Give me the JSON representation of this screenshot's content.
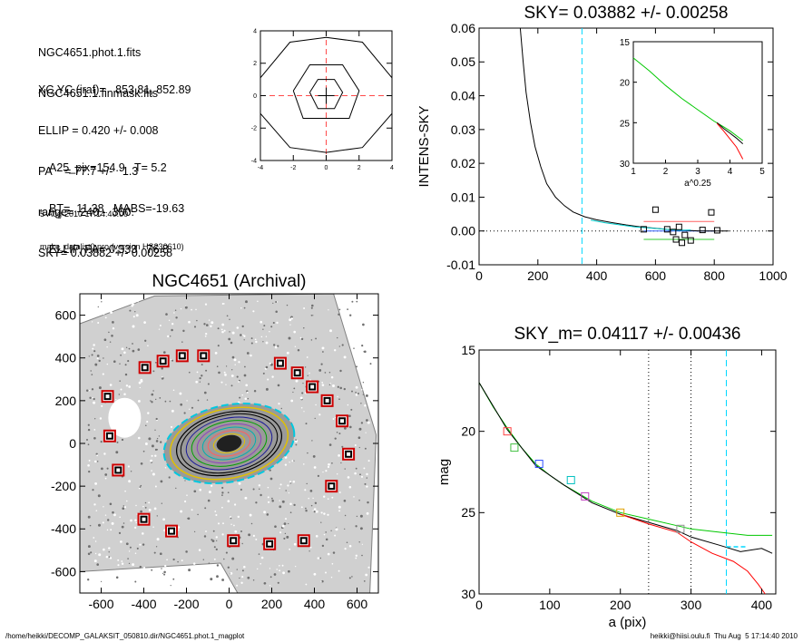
{
  "info": {
    "lines_a": [
      "NGC4651.phot.1.fits",
      "NGC4651.1.finmask.fits"
    ],
    "lines_b": [
      "XC,YC (iraf)=   853.81, 852.89",
      "ELLIP = 0.420 +/- 0.008",
      "PA    = 77.7 +/-   1.3",
      "range=  240.-  300.",
      "SKY= 0.03882 +/- 0.00258"
    ],
    "lines_c": [
      "A25_pix=154.9   T= 5.2",
      "BT=  11.38   MABS=-19.63",
      "ELLIP, PA= 0.333   76.8"
    ],
    "lines_d": [
      "5-Aug-2010 17:14:40.00",
      "make_datalist0.pro (version HS230610)"
    ]
  },
  "footer": {
    "left": "/home/heikki/DECOMP_GALAKSIT_050810.dir/NGC4651.phot.1_magplot",
    "right": "heikki@hiisi.oulu.fi  Thu Aug  5 17:14:40 2010"
  },
  "chart_data": [
    {
      "id": "contour",
      "type": "contour",
      "title": "",
      "xlim": [
        -4,
        4
      ],
      "ylim": [
        -4,
        4
      ],
      "xticks": [
        -4,
        -2,
        0,
        2,
        4
      ],
      "yticks": [
        -4,
        -2,
        0,
        2,
        4
      ],
      "contours": [
        [
          [
            -1,
            0.2
          ],
          [
            -0.5,
            1
          ],
          [
            0.5,
            1
          ],
          [
            1,
            0.2
          ],
          [
            0.5,
            -0.8
          ],
          [
            -0.5,
            -0.8
          ],
          [
            -1,
            0.2
          ]
        ],
        [
          [
            -2,
            0.3
          ],
          [
            -1,
            1.9
          ],
          [
            1,
            1.9
          ],
          [
            2,
            0.3
          ],
          [
            1.4,
            -1.4
          ],
          [
            -1.4,
            -1.4
          ],
          [
            -2,
            0.3
          ]
        ],
        [
          [
            -4,
            1.1
          ],
          [
            -2.2,
            3.3
          ],
          [
            0,
            3.6
          ],
          [
            2.2,
            3.3
          ],
          [
            4,
            1.1
          ]
        ],
        [
          [
            -4,
            -1.1
          ],
          [
            -2.2,
            -3.2
          ],
          [
            0,
            -3.5
          ],
          [
            2.2,
            -3.2
          ],
          [
            4,
            -1.1
          ]
        ]
      ],
      "colors": {
        "contour": "#000000",
        "crosshair": "#ff4a4a"
      }
    },
    {
      "id": "sky",
      "type": "line",
      "title": "SKY= 0.03882 +/- 0.00258",
      "xlabel": "",
      "ylabel": "INTENS-SKY",
      "xlim": [
        0,
        1000
      ],
      "ylim": [
        -0.01,
        0.06
      ],
      "xticks": [
        0,
        200,
        400,
        600,
        800,
        1000
      ],
      "yticks": [
        -0.01,
        0.0,
        0.01,
        0.02,
        0.03,
        0.04,
        0.05,
        0.06
      ],
      "ytick_labels": [
        "-0.01",
        "0.00",
        "0.01",
        "0.02",
        "0.03",
        "0.04",
        "0.05",
        "0.06"
      ],
      "vline_x": 350,
      "series": [
        {
          "values": [
            [
              140,
              0.06
            ],
            [
              150,
              0.05
            ],
            [
              160,
              0.041
            ],
            [
              175,
              0.032
            ],
            [
              190,
              0.025
            ],
            [
              210,
              0.019
            ],
            [
              230,
              0.014
            ],
            [
              260,
              0.01
            ],
            [
              290,
              0.0075
            ],
            [
              320,
              0.0056
            ],
            [
              360,
              0.0042
            ],
            [
              400,
              0.0033
            ],
            [
              450,
              0.0025
            ],
            [
              500,
              0.0018
            ],
            [
              550,
              0.0012
            ],
            [
              600,
              0.0008
            ],
            [
              650,
              0.0004
            ],
            [
              700,
              0.0002
            ],
            [
              750,
              0.0
            ],
            [
              800,
              0.0
            ],
            [
              850,
              0.0
            ]
          ],
          "color": "#000000"
        },
        {
          "values": [
            [
              380,
              0.0032
            ],
            [
              430,
              0.0024
            ],
            [
              480,
              0.0018
            ],
            [
              530,
              0.0012
            ],
            [
              580,
              0.0009
            ],
            [
              630,
              0.0005
            ],
            [
              680,
              0.0002
            ],
            [
              720,
              0.0003
            ]
          ],
          "color": "#00c8c8"
        }
      ],
      "sky_levels": [
        {
          "x": [
            560,
            800
          ],
          "y": 0.0028,
          "color": "#ff6060"
        },
        {
          "x": [
            560,
            800
          ],
          "y": -0.0025,
          "color": "#30c830"
        },
        {
          "x": [
            560,
            800
          ],
          "y": 0.0,
          "color": "#3060ff"
        }
      ],
      "sky_points": [
        [
          560,
          0.0005
        ],
        [
          600,
          0.0063
        ],
        [
          640,
          0.0005
        ],
        [
          660,
          -0.0003
        ],
        [
          670,
          -0.0025
        ],
        [
          680,
          0.0012
        ],
        [
          700,
          -0.0012
        ],
        [
          720,
          -0.0028
        ],
        [
          760,
          0.0003
        ],
        [
          790,
          0.0055
        ],
        [
          810,
          0.0002
        ],
        [
          690,
          -0.0035
        ]
      ],
      "inset": {
        "xlabel": "a^0.25",
        "xlim": [
          1,
          5
        ],
        "ylim": [
          30,
          15
        ],
        "xticks": [
          1,
          2,
          3,
          4,
          5
        ],
        "yticks": [
          15,
          20,
          25,
          30
        ],
        "series": [
          {
            "values": [
              [
                1.0,
                17.0
              ],
              [
                1.5,
                18.6
              ],
              [
                2.0,
                20.4
              ],
              [
                2.5,
                22.0
              ],
              [
                3.0,
                23.4
              ],
              [
                3.5,
                24.8
              ],
              [
                3.8,
                25.5
              ],
              [
                4.0,
                26.0
              ],
              [
                4.2,
                26.6
              ],
              [
                4.4,
                27.2
              ]
            ],
            "color": "#00c800"
          },
          {
            "values": [
              [
                3.6,
                25.0
              ],
              [
                3.8,
                25.7
              ],
              [
                4.0,
                26.3
              ],
              [
                4.2,
                26.9
              ],
              [
                4.4,
                27.6
              ]
            ],
            "color": "#000000"
          },
          {
            "values": [
              [
                3.6,
                25.1
              ],
              [
                3.8,
                26.0
              ],
              [
                4.0,
                27.0
              ],
              [
                4.2,
                28.0
              ],
              [
                4.4,
                29.5
              ]
            ],
            "color": "#ff0000"
          }
        ]
      }
    },
    {
      "id": "image",
      "type": "scatter",
      "title": "NGC4651 (Archival)",
      "xlim": [
        -700,
        700
      ],
      "ylim": [
        -700,
        700
      ],
      "xticks": [
        -600,
        -400,
        -200,
        0,
        200,
        400,
        600
      ],
      "yticks": [
        -600,
        -400,
        -200,
        0,
        200,
        400,
        600
      ],
      "sky_boxes": [
        [
          -570,
          220
        ],
        [
          -560,
          35
        ],
        [
          -520,
          -125
        ],
        [
          -395,
          355
        ],
        [
          -310,
          385
        ],
        [
          -220,
          410
        ],
        [
          -120,
          410
        ],
        [
          240,
          375
        ],
        [
          320,
          330
        ],
        [
          390,
          265
        ],
        [
          460,
          200
        ],
        [
          530,
          105
        ],
        [
          560,
          -50
        ],
        [
          480,
          -200
        ],
        [
          -400,
          -355
        ],
        [
          -270,
          -410
        ],
        [
          20,
          -455
        ],
        [
          190,
          -470
        ],
        [
          350,
          -455
        ]
      ],
      "box_color": "#cc0000",
      "ellipse_ratio": 0.58,
      "ellipse_angle": -12,
      "ellipse_a": [
        250,
        280,
        310
      ],
      "isophote_colors": [
        "#000000",
        "#1a1a99",
        "#00a000",
        "#9040c0",
        "#00b0b0",
        "#ff6060",
        "#e0c000",
        "#808080"
      ]
    },
    {
      "id": "mag",
      "type": "line",
      "title": "SKY_m=  0.04117 +/- 0.00436",
      "xlabel": "a (pix)",
      "ylabel": "mag",
      "xlim": [
        0,
        420
      ],
      "ylim": [
        30,
        15
      ],
      "xticks": [
        0,
        100,
        200,
        300,
        400
      ],
      "yticks": [
        15,
        20,
        25,
        30
      ],
      "vlines": [
        240,
        300,
        350
      ],
      "series": [
        {
          "values": [
            [
              0,
              17.0
            ],
            [
              20,
              18.5
            ],
            [
              40,
              19.8
            ],
            [
              60,
              21.0
            ],
            [
              80,
              22.0
            ],
            [
              100,
              22.7
            ],
            [
              120,
              23.3
            ],
            [
              140,
              23.8
            ],
            [
              160,
              24.3
            ],
            [
              200,
              25.0
            ],
            [
              240,
              25.4
            ],
            [
              280,
              25.8
            ],
            [
              300,
              26.0
            ],
            [
              340,
              26.2
            ],
            [
              380,
              26.4
            ],
            [
              415,
              26.4
            ]
          ],
          "color": "#00c800"
        },
        {
          "values": [
            [
              0,
              17.0
            ],
            [
              40,
              19.9
            ],
            [
              80,
              22.1
            ],
            [
              120,
              23.3
            ],
            [
              160,
              24.4
            ],
            [
              200,
              25.1
            ],
            [
              240,
              25.6
            ],
            [
              280,
              26.1
            ],
            [
              300,
              26.5
            ],
            [
              340,
              27.0
            ],
            [
              370,
              27.4
            ],
            [
              400,
              27.2
            ],
            [
              415,
              27.5
            ]
          ],
          "color": "#000000"
        },
        {
          "values": [
            [
              200,
              25.1
            ],
            [
              240,
              25.7
            ],
            [
              280,
              26.2
            ],
            [
              300,
              26.8
            ],
            [
              330,
              27.5
            ],
            [
              360,
              28.0
            ],
            [
              380,
              28.6
            ],
            [
              395,
              29.4
            ],
            [
              405,
              30.0
            ]
          ],
          "color": "#ff0000"
        }
      ],
      "markers": [
        [
          40,
          20.0,
          "#ff4040"
        ],
        [
          50,
          21.0,
          "#40c040"
        ],
        [
          85,
          22.0,
          "#3050ff"
        ],
        [
          130,
          23.0,
          "#00c0c0"
        ],
        [
          150,
          24.0,
          "#c040c0"
        ],
        [
          200,
          25.0,
          "#e0a000"
        ],
        [
          285,
          26.0,
          "#909090"
        ]
      ],
      "sky_range": [
        [
          350,
          27.1
        ],
        [
          380,
          27.1
        ]
      ]
    }
  ]
}
